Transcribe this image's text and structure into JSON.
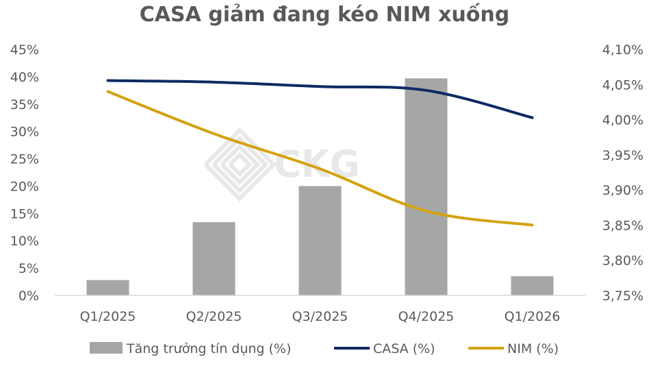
{
  "chart_data": {
    "type": "bar+line",
    "title": "CASA giảm đang kéo NIM xuống",
    "categories": [
      "Q1/2025",
      "Q2/2025",
      "Q3/2025",
      "Q4/2025",
      "Q1/2026"
    ],
    "left_axis": {
      "ylim": [
        0,
        45
      ],
      "ticks": [
        0,
        5,
        10,
        15,
        20,
        25,
        30,
        35,
        40,
        45
      ],
      "tick_labels": [
        "0%",
        "5%",
        "10%",
        "15%",
        "20%",
        "25%",
        "30%",
        "35%",
        "40%",
        "45%"
      ]
    },
    "right_axis": {
      "ylim": [
        3.75,
        4.1
      ],
      "ticks": [
        3.75,
        3.8,
        3.85,
        3.9,
        3.95,
        4.0,
        4.05,
        4.1
      ],
      "tick_labels": [
        "3,75%",
        "3,80%",
        "3,85%",
        "3,90%",
        "3,95%",
        "4,00%",
        "4,05%",
        "4,10%"
      ]
    },
    "series": [
      {
        "name": "Tăng trưởng tín dụng (%)",
        "type": "bar",
        "axis": "left",
        "color": "#a6a6a6",
        "values": [
          2.8,
          13.4,
          20.0,
          39.7,
          3.5
        ]
      },
      {
        "name": "CASA (%)",
        "type": "line",
        "axis": "left",
        "color": "#0d2a63",
        "values": [
          39.3,
          39.0,
          38.2,
          37.5,
          32.5
        ]
      },
      {
        "name": "NIM (%)",
        "type": "line",
        "axis": "right",
        "color": "#d4a20e",
        "values": [
          4.04,
          3.98,
          3.93,
          3.87,
          3.85
        ]
      }
    ],
    "grid": false,
    "legend_position": "bottom"
  },
  "watermark": {
    "text": "CKG"
  }
}
